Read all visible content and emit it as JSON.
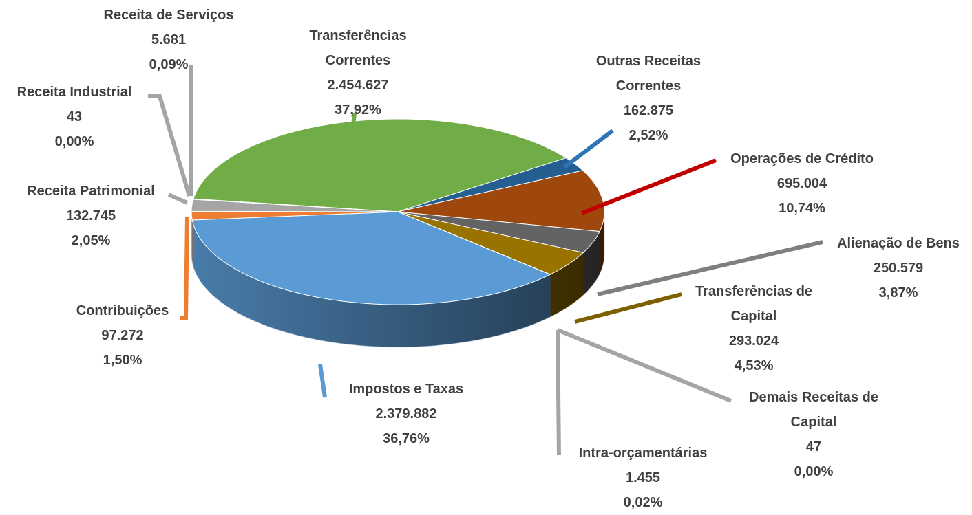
{
  "chart_data": {
    "type": "pie3d",
    "categories": [
      "Transferências Correntes",
      "Outras Receitas Correntes",
      "Operações de Crédito",
      "Alienação de Bens",
      "Transferências de Capital",
      "Demais Receitas de Capital",
      "Intra-orçamentárias",
      "Impostos e Taxas",
      "Contribuições",
      "Receita Patrimonial",
      "Receita Industrial",
      "Receita de Serviços"
    ],
    "values": [
      2454627,
      162875,
      695004,
      250579,
      293024,
      47,
      1455,
      2379882,
      97272,
      132745,
      43,
      5681
    ],
    "value_labels": [
      "2.454.627",
      "162.875",
      "695.004",
      "250.579",
      "293.024",
      "47",
      "1.455",
      "2.379.882",
      "97.272",
      "132.745",
      "43",
      "5.681"
    ],
    "percentages": [
      37.92,
      2.52,
      10.74,
      3.87,
      4.53,
      0.0,
      0.02,
      36.76,
      1.5,
      2.05,
      0.0,
      0.09
    ],
    "percentage_labels": [
      "37,92%",
      "2,52%",
      "10,74%",
      "3,87%",
      "4,53%",
      "0,00%",
      "0,02%",
      "36,76%",
      "1,50%",
      "2,05%",
      "0,00%",
      "0,09%"
    ],
    "colors": [
      "#70ad47",
      "#255e91",
      "#9e480e",
      "#636363",
      "#997300",
      "#a5a5a5",
      "#a5a5a5",
      "#5b9bd5",
      "#ed7d31",
      "#a5a5a5",
      "#a5a5a5",
      "#a5a5a5"
    ]
  }
}
